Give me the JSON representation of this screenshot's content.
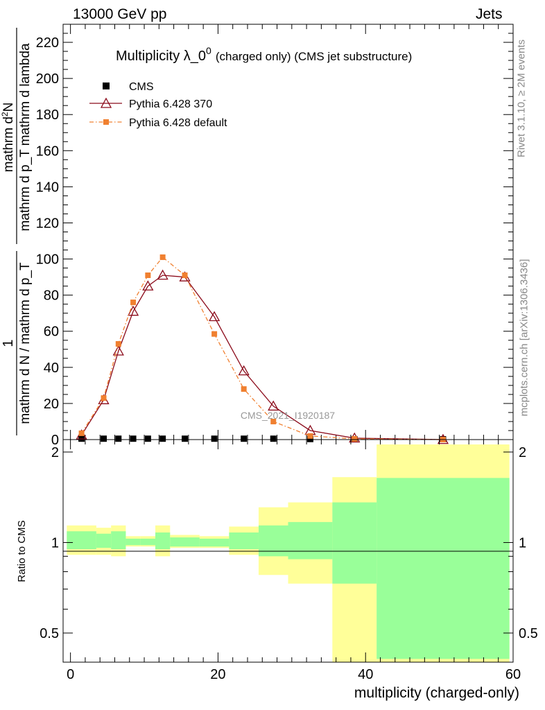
{
  "header": {
    "left": "13000 GeV pp",
    "right": "Jets"
  },
  "side_labels": {
    "rivet": "Rivet 3.1.10, ≥ 2M events",
    "mcplots": "mcplots.cern.ch [arXiv:1306.3436]"
  },
  "watermark": "CMS_2021_I1920187",
  "chart_data": [
    {
      "type": "line",
      "title": "Multiplicity λ_0",
      "title_sup": "0",
      "title_suffix": "(charged only) (CMS jet substructure)",
      "ylabel": {
        "numerator": "1",
        "denominator": "mathrm d N / mathrm d p_T",
        "right_num": "mathrm d",
        "right_num_sup": "2",
        "right_num_end": "N",
        "right_den": "mathrm d p_T mathrm d lambda"
      },
      "xlabel": "",
      "xlim": [
        -1,
        60
      ],
      "ylim": [
        0,
        230
      ],
      "x_ticks": [
        0,
        20,
        40,
        60
      ],
      "y_ticks": [
        0,
        20,
        40,
        60,
        80,
        100,
        120,
        140,
        160,
        180,
        200,
        220
      ],
      "legend_position": "top-left",
      "series": [
        {
          "name": "CMS",
          "color": "#000000",
          "marker": "square",
          "x": [
            1.5,
            4.5,
            6.5,
            8.5,
            10.5,
            12.5,
            15.5,
            19.5,
            23.5,
            27.5,
            32.5,
            38.5,
            50.5
          ],
          "values": [
            0.5,
            0.5,
            0.5,
            0.5,
            0.5,
            0.5,
            0.5,
            0.5,
            0.5,
            0.5,
            0.3,
            0.2,
            0.2
          ]
        },
        {
          "name": "Pythia 6.428 370",
          "color": "#8b0a1a",
          "marker": "triangle-open",
          "x": [
            1.5,
            4.5,
            6.5,
            8.5,
            10.5,
            12.5,
            15.5,
            19.5,
            23.5,
            27.5,
            32.5,
            38.5,
            50.5
          ],
          "values": [
            2.5,
            22,
            49,
            71,
            85,
            91,
            90,
            68,
            38,
            18.5,
            5,
            0.8,
            0
          ]
        },
        {
          "name": "Pythia 6.428 default",
          "color": "#f08030",
          "marker": "square",
          "x": [
            1.5,
            4.5,
            6.5,
            8.5,
            10.5,
            12.5,
            15.5,
            19.5,
            23.5,
            27.5,
            32.5,
            38.5,
            50.5
          ],
          "values": [
            3.5,
            23,
            53,
            76,
            91,
            101,
            91,
            58.5,
            28,
            10,
            2,
            0.4,
            0
          ]
        }
      ]
    },
    {
      "type": "area",
      "ylabel": "Ratio to CMS",
      "xlabel": "multiplicity (charged-only)",
      "xlim": [
        -1,
        60
      ],
      "ylim": [
        0.4,
        2.2
      ],
      "x_ticks": [
        0,
        20,
        40,
        60
      ],
      "y_ticks": [
        0.5,
        1,
        2
      ],
      "y_tick_labels": [
        "0.5",
        "1",
        "2"
      ],
      "bands": [
        {
          "x0": -0.5,
          "x1": 3.5,
          "yellow": [
            0.91,
            1.14
          ],
          "green": [
            0.95,
            1.09
          ]
        },
        {
          "x0": 3.5,
          "x1": 5.5,
          "yellow": [
            0.91,
            1.12
          ],
          "green": [
            0.96,
            1.07
          ]
        },
        {
          "x0": 5.5,
          "x1": 7.5,
          "yellow": [
            0.9,
            1.14
          ],
          "green": [
            0.95,
            1.09
          ]
        },
        {
          "x0": 7.5,
          "x1": 9.5,
          "yellow": [
            0.97,
            1.05
          ],
          "green": [
            0.98,
            1.03
          ]
        },
        {
          "x0": 9.5,
          "x1": 11.5,
          "yellow": [
            0.97,
            1.05
          ],
          "green": [
            0.98,
            1.03
          ]
        },
        {
          "x0": 11.5,
          "x1": 13.5,
          "yellow": [
            0.9,
            1.14
          ],
          "green": [
            0.95,
            1.08
          ]
        },
        {
          "x0": 13.5,
          "x1": 17.5,
          "yellow": [
            0.96,
            1.06
          ],
          "green": [
            0.97,
            1.04
          ]
        },
        {
          "x0": 17.5,
          "x1": 21.5,
          "yellow": [
            0.96,
            1.05
          ],
          "green": [
            0.97,
            1.03
          ]
        },
        {
          "x0": 21.5,
          "x1": 25.5,
          "yellow": [
            0.91,
            1.13
          ],
          "green": [
            0.95,
            1.08
          ]
        },
        {
          "x0": 25.5,
          "x1": 29.5,
          "yellow": [
            0.78,
            1.31
          ],
          "green": [
            0.9,
            1.14
          ]
        },
        {
          "x0": 29.5,
          "x1": 35.5,
          "yellow": [
            0.73,
            1.36
          ],
          "green": [
            0.88,
            1.17
          ]
        },
        {
          "x0": 35.5,
          "x1": 41.5,
          "yellow": [
            0.4,
            1.65
          ],
          "green": [
            0.73,
            1.36
          ]
        },
        {
          "x0": 41.5,
          "x1": 59.5,
          "yellow": [
            0.4,
            2.12
          ],
          "green": [
            0.41,
            1.64
          ]
        }
      ]
    }
  ]
}
